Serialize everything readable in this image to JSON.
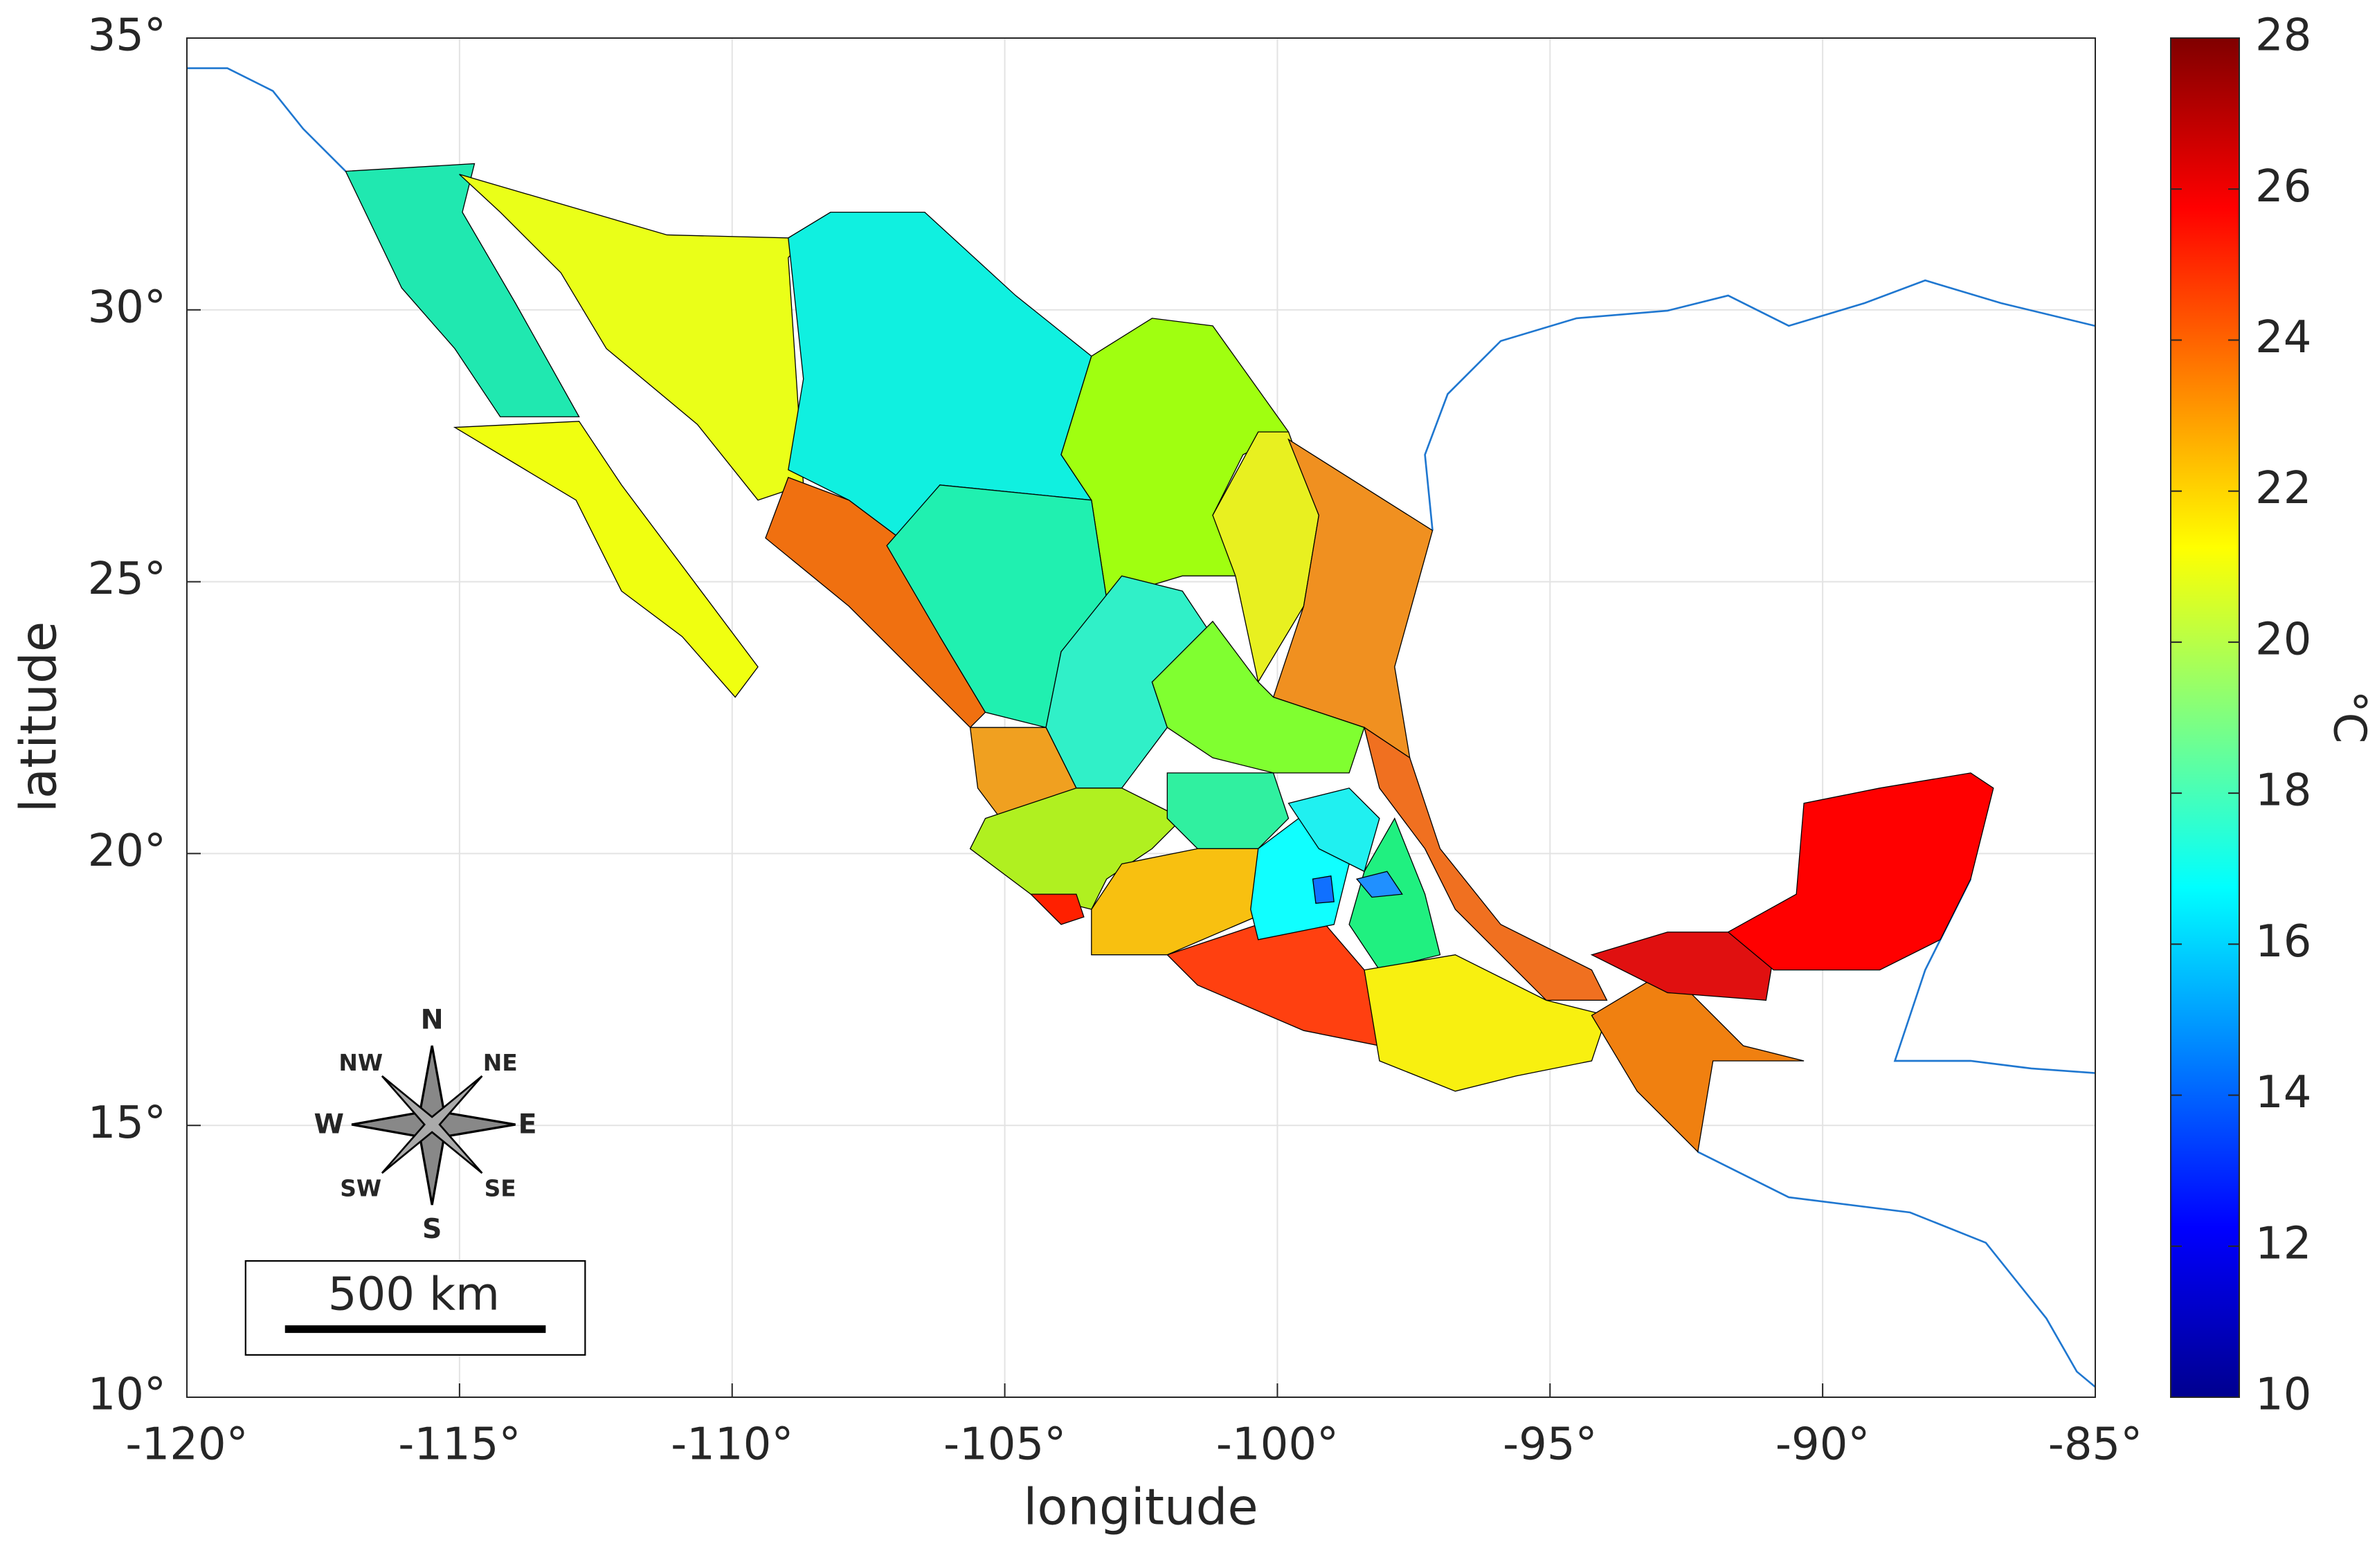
{
  "chart_data": {
    "type": "map",
    "xlabel": "longitude",
    "ylabel": "latitude",
    "xlim": [
      -120,
      -85
    ],
    "xticks": [
      {
        "value": -120,
        "label": "-120°"
      },
      {
        "value": -115,
        "label": "-115°"
      },
      {
        "value": -110,
        "label": "-110°"
      },
      {
        "value": -105,
        "label": "-105°"
      },
      {
        "value": -100,
        "label": "-100°"
      },
      {
        "value": -95,
        "label": "-95°"
      },
      {
        "value": -90,
        "label": "-90°"
      },
      {
        "value": -85,
        "label": "-85°"
      }
    ],
    "ylim": [
      10,
      35
    ],
    "yticks": [
      {
        "value": 10,
        "label": "10°"
      },
      {
        "value": 15,
        "label": "15°"
      },
      {
        "value": 20,
        "label": "20°"
      },
      {
        "value": 25,
        "label": "25°"
      },
      {
        "value": 30,
        "label": "30°"
      },
      {
        "value": 35,
        "label": "35°"
      }
    ],
    "grid": true,
    "colorbar": {
      "label": "°C",
      "colormap": "jet",
      "clim": [
        10,
        28
      ],
      "ticks": [
        10,
        12,
        14,
        16,
        18,
        20,
        22,
        24,
        26,
        28
      ]
    },
    "compass": [
      "N",
      "NE",
      "E",
      "SE",
      "S",
      "SW",
      "W",
      "NW"
    ],
    "scale_bar": "500 km"
  }
}
